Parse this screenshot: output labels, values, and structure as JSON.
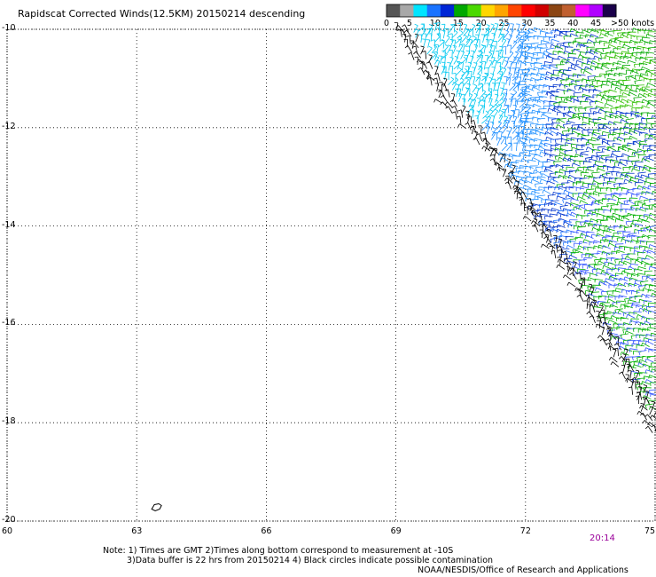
{
  "title": "Rapidscat Corrected Winds(12.5KM) 20150214 descending",
  "colorbar": {
    "colors": [
      "#555555",
      "#a8a8a8",
      "#00e5ff",
      "#1a73ff",
      "#0026d6",
      "#00a800",
      "#4ad900",
      "#ffd700",
      "#ffa500",
      "#ff4500",
      "#ff0000",
      "#d00000",
      "#8b4513",
      "#c06030",
      "#ff00ff",
      "#b000ff",
      "#1a004a"
    ],
    "ticks": [
      {
        "value": 0,
        "label": "0"
      },
      {
        "value": 5,
        "label": "5"
      },
      {
        "value": 10,
        "label": "10"
      },
      {
        "value": 15,
        "label": "15"
      },
      {
        "value": 20,
        "label": "20"
      },
      {
        "value": 25,
        "label": "25"
      },
      {
        "value": 30,
        "label": "30"
      },
      {
        "value": 35,
        "label": "35"
      },
      {
        "value": 40,
        "label": "40"
      },
      {
        "value": 45,
        "label": "45"
      }
    ],
    "max_label": ">50 knots"
  },
  "map": {
    "lon_range": [
      60,
      75
    ],
    "lat_range": [
      -20,
      -10
    ],
    "lat_ticks": [
      {
        "value": -10,
        "label": "-10"
      },
      {
        "value": -12,
        "label": "-12"
      },
      {
        "value": -14,
        "label": "-14"
      },
      {
        "value": -16,
        "label": "-16"
      },
      {
        "value": -18,
        "label": "-18"
      },
      {
        "value": -20,
        "label": "-20"
      }
    ],
    "lon_ticks": [
      {
        "value": 60,
        "label": "60"
      },
      {
        "value": 63,
        "label": "63"
      },
      {
        "value": 66,
        "label": "66"
      },
      {
        "value": 69,
        "label": "69"
      },
      {
        "value": 72,
        "label": "72"
      },
      {
        "value": 75,
        "label": "75"
      }
    ],
    "grid": true,
    "swath_edge": [
      [
        69.0,
        -10.0
      ],
      [
        70.1,
        -11.5
      ],
      [
        71.2,
        -12.6
      ],
      [
        72.2,
        -14.0
      ],
      [
        73.2,
        -15.3
      ],
      [
        74.2,
        -16.9
      ],
      [
        75.0,
        -18.3
      ]
    ],
    "colors": {
      "coast": "#000000",
      "grid": "#000000"
    }
  },
  "time_label": "20:14",
  "notes": {
    "line1": "Note: 1) Times are GMT 2)Times along bottom correspond to measurement at -10S",
    "line2": "3)Data buffer is 22 hrs from 20150214 4) Black circles indicate possible contamination",
    "credit": "NOAA/NESDIS/Office of Research and Applications"
  }
}
